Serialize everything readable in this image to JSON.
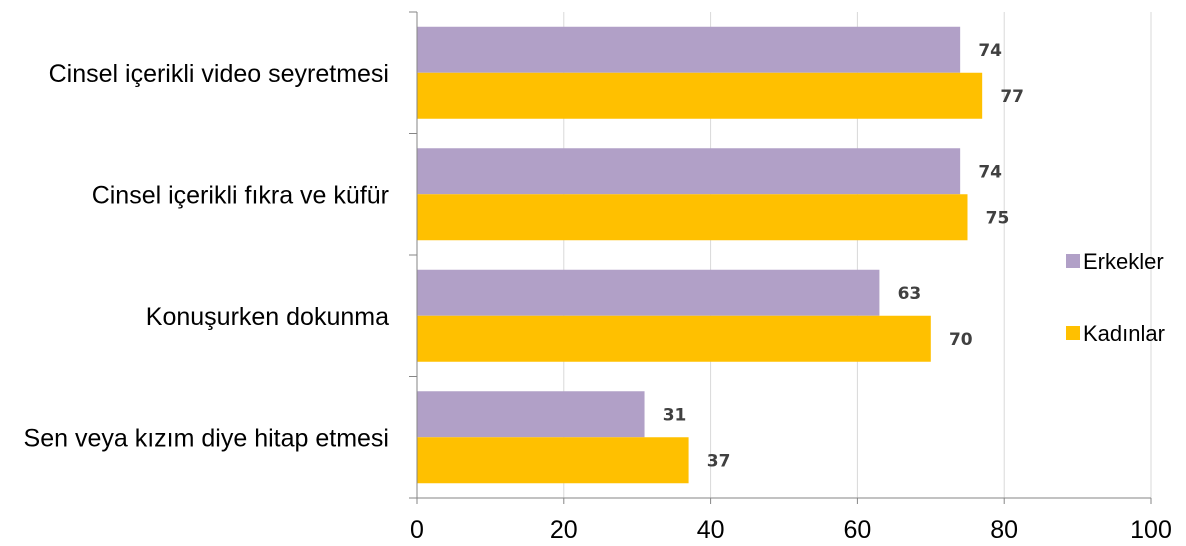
{
  "chart_data": {
    "type": "bar",
    "orientation": "horizontal",
    "categories": [
      "Cinsel içerikli video seyretmesi",
      "Cinsel içerikli fıkra ve küfür",
      "Konuşurken dokunma",
      "Sen veya kızım diye hitap etmesi"
    ],
    "series": [
      {
        "name": "Erkekler",
        "color": "#b1a0c7",
        "values": [
          74,
          74,
          63,
          31
        ]
      },
      {
        "name": "Kadınlar",
        "color": "#ffc000",
        "values": [
          77,
          75,
          70,
          37
        ]
      }
    ],
    "xlim": [
      0,
      100
    ],
    "xticks": [
      0,
      20,
      40,
      60,
      80,
      100
    ],
    "title": "",
    "xlabel": "",
    "ylabel": "",
    "grid": "vertical",
    "legend_position": "right",
    "data_labels": true
  }
}
